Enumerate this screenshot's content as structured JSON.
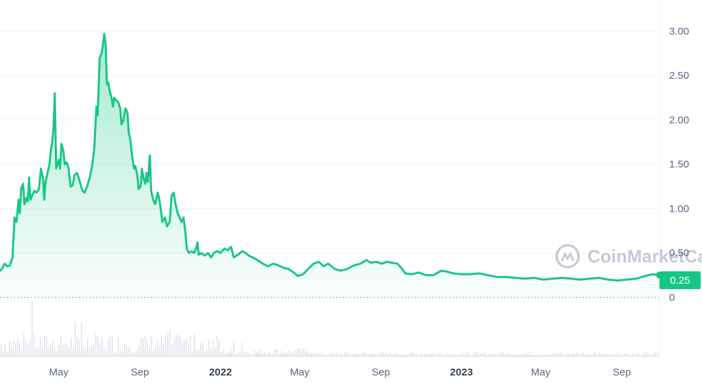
{
  "chart_data": {
    "type": "area",
    "y_ticks": [
      "3.00",
      "2.50",
      "2.00",
      "1.50",
      "1.00",
      "0.50",
      "0"
    ],
    "y_values": [
      3.0,
      2.5,
      2.0,
      1.5,
      1.0,
      0.5,
      0
    ],
    "ylim": [
      0,
      3.35
    ],
    "x_ticks": [
      {
        "label": "May",
        "bold": false,
        "date": "2021-05-01"
      },
      {
        "label": "Sep",
        "bold": false,
        "date": "2021-09-01"
      },
      {
        "label": "2022",
        "bold": true,
        "date": "2022-01-01"
      },
      {
        "label": "May",
        "bold": false,
        "date": "2022-05-01"
      },
      {
        "label": "Sep",
        "bold": false,
        "date": "2022-09-01"
      },
      {
        "label": "2023",
        "bold": true,
        "date": "2023-01-01"
      },
      {
        "label": "May",
        "bold": false,
        "date": "2023-05-01"
      },
      {
        "label": "Sep",
        "bold": false,
        "date": "2023-09-01"
      }
    ],
    "x_range": [
      "2021-02-01",
      "2023-10-28"
    ],
    "current_value": 0.25,
    "current_label": "0.25",
    "line_color": "#16c784",
    "grid": true,
    "series": [
      {
        "values": [
          [
            "2021-02-01",
            0.3
          ],
          [
            "2021-02-04",
            0.32
          ],
          [
            "2021-02-08",
            0.38
          ],
          [
            "2021-02-12",
            0.35
          ],
          [
            "2021-02-16",
            0.36
          ],
          [
            "2021-02-20",
            0.45
          ],
          [
            "2021-02-23",
            0.9
          ],
          [
            "2021-02-26",
            0.85
          ],
          [
            "2021-03-01",
            1.1
          ],
          [
            "2021-03-03",
            0.95
          ],
          [
            "2021-03-05",
            1.22
          ],
          [
            "2021-03-08",
            1.28
          ],
          [
            "2021-03-10",
            1.05
          ],
          [
            "2021-03-13",
            1.12
          ],
          [
            "2021-03-15",
            1.08
          ],
          [
            "2021-03-17",
            1.35
          ],
          [
            "2021-03-19",
            1.1
          ],
          [
            "2021-03-22",
            1.15
          ],
          [
            "2021-03-25",
            1.2
          ],
          [
            "2021-03-28",
            1.18
          ],
          [
            "2021-04-01",
            1.22
          ],
          [
            "2021-04-04",
            1.45
          ],
          [
            "2021-04-07",
            1.35
          ],
          [
            "2021-04-09",
            1.1
          ],
          [
            "2021-04-11",
            1.3
          ],
          [
            "2021-04-14",
            1.4
          ],
          [
            "2021-04-17",
            1.5
          ],
          [
            "2021-04-19",
            1.65
          ],
          [
            "2021-04-21",
            1.75
          ],
          [
            "2021-04-23",
            1.9
          ],
          [
            "2021-04-25",
            2.3
          ],
          [
            "2021-04-27",
            1.45
          ],
          [
            "2021-04-29",
            1.5
          ],
          [
            "2021-05-01",
            1.55
          ],
          [
            "2021-05-03",
            1.45
          ],
          [
            "2021-05-05",
            1.73
          ],
          [
            "2021-05-08",
            1.65
          ],
          [
            "2021-05-10",
            1.5
          ],
          [
            "2021-05-13",
            1.52
          ],
          [
            "2021-05-16",
            1.45
          ],
          [
            "2021-05-19",
            1.25
          ],
          [
            "2021-05-22",
            1.26
          ],
          [
            "2021-05-25",
            1.38
          ],
          [
            "2021-05-29",
            1.4
          ],
          [
            "2021-06-02",
            1.3
          ],
          [
            "2021-06-06",
            1.2
          ],
          [
            "2021-06-09",
            1.18
          ],
          [
            "2021-06-13",
            1.25
          ],
          [
            "2021-06-17",
            1.35
          ],
          [
            "2021-06-21",
            1.5
          ],
          [
            "2021-06-24",
            1.7
          ],
          [
            "2021-06-27",
            2.15
          ],
          [
            "2021-06-29",
            2.05
          ],
          [
            "2021-07-02",
            2.7
          ],
          [
            "2021-07-05",
            2.75
          ],
          [
            "2021-07-07",
            2.85
          ],
          [
            "2021-07-09",
            2.97
          ],
          [
            "2021-07-11",
            2.85
          ],
          [
            "2021-07-13",
            2.4
          ],
          [
            "2021-07-15",
            2.42
          ],
          [
            "2021-07-18",
            2.3
          ],
          [
            "2021-07-20",
            2.25
          ],
          [
            "2021-07-22",
            2.15
          ],
          [
            "2021-07-24",
            2.25
          ],
          [
            "2021-07-27",
            2.22
          ],
          [
            "2021-07-30",
            2.2
          ],
          [
            "2021-08-02",
            2.13
          ],
          [
            "2021-08-04",
            1.95
          ],
          [
            "2021-08-07",
            2.0
          ],
          [
            "2021-08-10",
            2.13
          ],
          [
            "2021-08-13",
            2.08
          ],
          [
            "2021-08-15",
            1.85
          ],
          [
            "2021-08-17",
            1.8
          ],
          [
            "2021-08-20",
            1.6
          ],
          [
            "2021-08-23",
            1.45
          ],
          [
            "2021-08-25",
            1.48
          ],
          [
            "2021-08-28",
            1.38
          ],
          [
            "2021-08-30",
            1.22
          ],
          [
            "2021-09-02",
            1.25
          ],
          [
            "2021-09-04",
            1.45
          ],
          [
            "2021-09-06",
            1.35
          ],
          [
            "2021-09-09",
            1.28
          ],
          [
            "2021-09-11",
            1.4
          ],
          [
            "2021-09-13",
            1.3
          ],
          [
            "2021-09-16",
            1.6
          ],
          [
            "2021-09-18",
            1.2
          ],
          [
            "2021-09-21",
            1.1
          ],
          [
            "2021-09-24",
            1.05
          ],
          [
            "2021-09-28",
            1.18
          ],
          [
            "2021-10-01",
            1.08
          ],
          [
            "2021-10-05",
            0.85
          ],
          [
            "2021-10-09",
            0.9
          ],
          [
            "2021-10-12",
            0.8
          ],
          [
            "2021-10-16",
            0.85
          ],
          [
            "2021-10-19",
            1.15
          ],
          [
            "2021-10-22",
            1.18
          ],
          [
            "2021-10-25",
            1.05
          ],
          [
            "2021-10-28",
            0.95
          ],
          [
            "2021-10-31",
            0.9
          ],
          [
            "2021-11-03",
            0.85
          ],
          [
            "2021-11-06",
            0.9
          ],
          [
            "2021-11-09",
            0.72
          ],
          [
            "2021-11-11",
            0.55
          ],
          [
            "2021-11-14",
            0.5
          ],
          [
            "2021-11-18",
            0.52
          ],
          [
            "2021-11-22",
            0.5
          ],
          [
            "2021-11-25",
            0.55
          ],
          [
            "2021-11-27",
            0.62
          ],
          [
            "2021-11-29",
            0.48
          ],
          [
            "2021-12-03",
            0.5
          ],
          [
            "2021-12-08",
            0.47
          ],
          [
            "2021-12-13",
            0.5
          ],
          [
            "2021-12-18",
            0.45
          ],
          [
            "2021-12-22",
            0.5
          ],
          [
            "2021-12-27",
            0.52
          ],
          [
            "2022-01-01",
            0.5
          ],
          [
            "2022-01-07",
            0.55
          ],
          [
            "2022-01-12",
            0.53
          ],
          [
            "2022-01-17",
            0.57
          ],
          [
            "2022-01-21",
            0.45
          ],
          [
            "2022-01-27",
            0.48
          ],
          [
            "2022-02-03",
            0.52
          ],
          [
            "2022-02-08",
            0.5
          ],
          [
            "2022-02-13",
            0.47
          ],
          [
            "2022-02-19",
            0.45
          ],
          [
            "2022-02-26",
            0.42
          ],
          [
            "2022-03-06",
            0.38
          ],
          [
            "2022-03-14",
            0.35
          ],
          [
            "2022-03-22",
            0.38
          ],
          [
            "2022-03-30",
            0.36
          ],
          [
            "2022-04-07",
            0.33
          ],
          [
            "2022-04-14",
            0.32
          ],
          [
            "2022-04-22",
            0.28
          ],
          [
            "2022-04-28",
            0.24
          ],
          [
            "2022-05-06",
            0.26
          ],
          [
            "2022-05-14",
            0.32
          ],
          [
            "2022-05-22",
            0.38
          ],
          [
            "2022-05-30",
            0.4
          ],
          [
            "2022-06-06",
            0.35
          ],
          [
            "2022-06-13",
            0.38
          ],
          [
            "2022-06-23",
            0.32
          ],
          [
            "2022-07-02",
            0.3
          ],
          [
            "2022-07-12",
            0.32
          ],
          [
            "2022-07-22",
            0.36
          ],
          [
            "2022-08-01",
            0.38
          ],
          [
            "2022-08-10",
            0.42
          ],
          [
            "2022-08-17",
            0.39
          ],
          [
            "2022-08-25",
            0.4
          ],
          [
            "2022-09-02",
            0.38
          ],
          [
            "2022-09-10",
            0.4
          ],
          [
            "2022-09-18",
            0.39
          ],
          [
            "2022-09-26",
            0.38
          ],
          [
            "2022-10-02",
            0.33
          ],
          [
            "2022-10-08",
            0.27
          ],
          [
            "2022-10-18",
            0.26
          ],
          [
            "2022-10-28",
            0.28
          ],
          [
            "2022-11-08",
            0.25
          ],
          [
            "2022-11-20",
            0.25
          ],
          [
            "2022-12-01",
            0.3
          ],
          [
            "2022-12-10",
            0.29
          ],
          [
            "2022-12-20",
            0.27
          ],
          [
            "2023-01-01",
            0.26
          ],
          [
            "2023-01-14",
            0.26
          ],
          [
            "2023-01-28",
            0.27
          ],
          [
            "2023-02-10",
            0.25
          ],
          [
            "2023-02-24",
            0.23
          ],
          [
            "2023-03-10",
            0.23
          ],
          [
            "2023-03-24",
            0.22
          ],
          [
            "2023-04-07",
            0.21
          ],
          [
            "2023-04-21",
            0.22
          ],
          [
            "2023-05-05",
            0.2
          ],
          [
            "2023-05-19",
            0.21
          ],
          [
            "2023-06-02",
            0.22
          ],
          [
            "2023-06-16",
            0.21
          ],
          [
            "2023-06-30",
            0.2
          ],
          [
            "2023-07-14",
            0.21
          ],
          [
            "2023-07-28",
            0.22
          ],
          [
            "2023-08-11",
            0.2
          ],
          [
            "2023-08-25",
            0.19
          ],
          [
            "2023-09-08",
            0.2
          ],
          [
            "2023-09-22",
            0.21
          ],
          [
            "2023-10-06",
            0.24
          ],
          [
            "2023-10-17",
            0.26
          ],
          [
            "2023-10-28",
            0.25
          ]
        ]
      }
    ]
  },
  "watermark": {
    "text": "CoinMarketCap",
    "icon": "coinmarketcap-logo-icon"
  }
}
